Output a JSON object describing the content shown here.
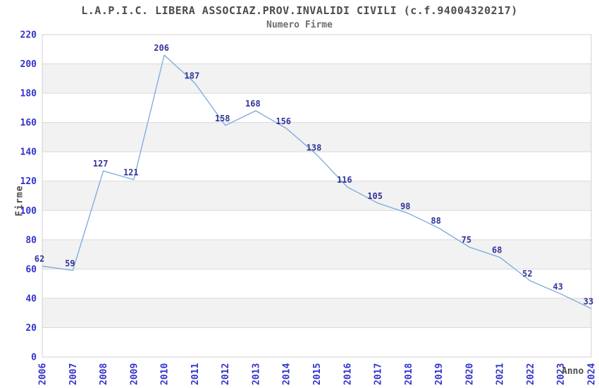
{
  "chart_data": {
    "type": "line",
    "title": "L.A.P.I.C. LIBERA ASSOCIAZ.PROV.INVALIDI CIVILI (c.f.94004320217)",
    "subtitle": "Numero Firme",
    "xlabel": "Anno",
    "ylabel": "Firme",
    "x": [
      2006,
      2007,
      2008,
      2009,
      2010,
      2011,
      2012,
      2013,
      2014,
      2015,
      2016,
      2017,
      2018,
      2019,
      2020,
      2021,
      2022,
      2023,
      2024
    ],
    "values": [
      62,
      59,
      127,
      121,
      206,
      187,
      158,
      168,
      156,
      138,
      116,
      105,
      98,
      88,
      75,
      68,
      52,
      43,
      33
    ],
    "ylim": [
      0,
      220
    ],
    "ytick_step": 20,
    "grid": "horizontal gridlines with alternating shaded bands",
    "legend_position": "none",
    "colors": {
      "line": "#7aa9dc",
      "point_label": "#333399",
      "tick_label": "#3333cc",
      "band": "#f2f2f2",
      "gridline": "#d9d9d9",
      "axis_border": "#d2d2d2",
      "title": "#4d4d4d",
      "subtitle": "#6e6e6e",
      "background": "#ffffff"
    }
  }
}
